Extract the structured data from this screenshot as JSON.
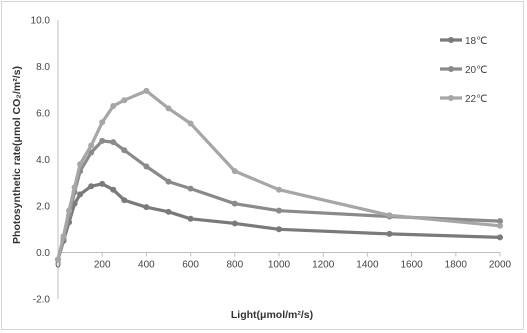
{
  "chart_data": {
    "type": "line",
    "title": "",
    "xlabel": "Light(μmol/m²/s)",
    "ylabel": "Photosynthetic rate(μmol CO₂/m²/s)",
    "xlim": [
      0,
      2000
    ],
    "ylim": [
      -2.0,
      10.0
    ],
    "x_ticks": [
      "0",
      "200",
      "400",
      "600",
      "800",
      "1000",
      "1200",
      "1400",
      "1600",
      "1800",
      "2000"
    ],
    "y_ticks": [
      "-2.0",
      "0.0",
      "2.0",
      "4.0",
      "6.0",
      "8.0",
      "10.0"
    ],
    "grid": false,
    "legend_position": "top-right",
    "series": [
      {
        "name": "18℃",
        "color": "#7a7a7a",
        "points": [
          [
            0,
            -0.3
          ],
          [
            25,
            0.5
          ],
          [
            50,
            1.3
          ],
          [
            75,
            2.1
          ],
          [
            100,
            2.5
          ],
          [
            150,
            2.85
          ],
          [
            200,
            2.95
          ],
          [
            250,
            2.7
          ],
          [
            300,
            2.25
          ],
          [
            400,
            1.95
          ],
          [
            500,
            1.75
          ],
          [
            600,
            1.45
          ],
          [
            800,
            1.25
          ],
          [
            1000,
            1.0
          ],
          [
            1500,
            0.8
          ],
          [
            2000,
            0.65
          ]
        ]
      },
      {
        "name": "20℃",
        "color": "#8a8a8a",
        "points": [
          [
            0,
            -0.3
          ],
          [
            25,
            0.6
          ],
          [
            50,
            1.6
          ],
          [
            75,
            2.6
          ],
          [
            100,
            3.5
          ],
          [
            150,
            4.3
          ],
          [
            200,
            4.8
          ],
          [
            250,
            4.75
          ],
          [
            300,
            4.4
          ],
          [
            400,
            3.7
          ],
          [
            500,
            3.05
          ],
          [
            600,
            2.75
          ],
          [
            800,
            2.1
          ],
          [
            1000,
            1.8
          ],
          [
            1500,
            1.55
          ],
          [
            2000,
            1.35
          ]
        ]
      },
      {
        "name": "22℃",
        "color": "#a6a6a6",
        "points": [
          [
            0,
            -0.3
          ],
          [
            25,
            0.7
          ],
          [
            50,
            1.8
          ],
          [
            75,
            2.8
          ],
          [
            100,
            3.8
          ],
          [
            150,
            4.6
          ],
          [
            200,
            5.6
          ],
          [
            250,
            6.3
          ],
          [
            300,
            6.55
          ],
          [
            400,
            6.95
          ],
          [
            500,
            6.2
          ],
          [
            600,
            5.55
          ],
          [
            800,
            3.5
          ],
          [
            1000,
            2.7
          ],
          [
            1500,
            1.6
          ],
          [
            2000,
            1.15
          ]
        ]
      }
    ]
  }
}
